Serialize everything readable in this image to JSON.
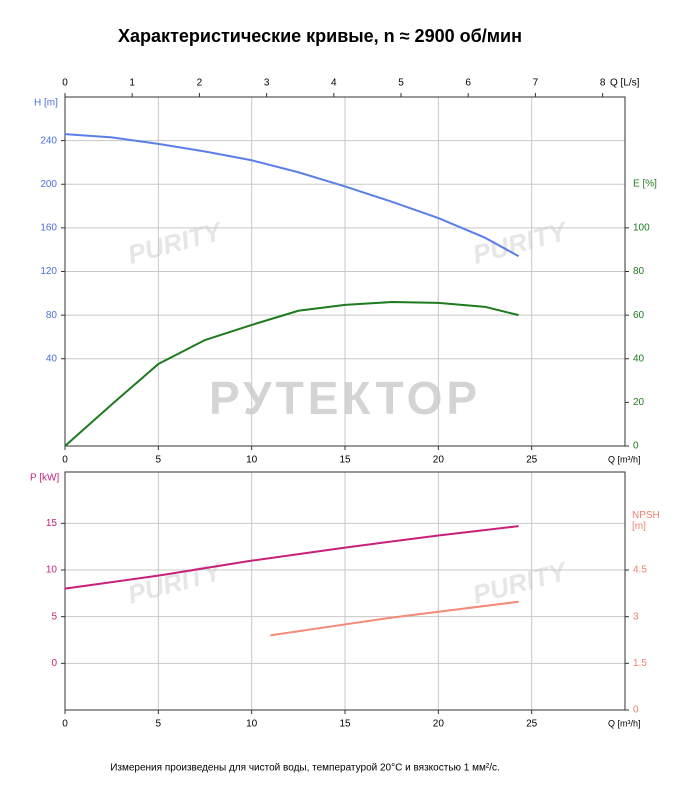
{
  "watermark": "РУТЕКТОР",
  "logo_text": "PURITY",
  "note": "Измерения произведены для чистой воды, температурой 20°C и вязкостью 1 мм²/с.",
  "chart_data": [
    {
      "type": "line",
      "title": "Характеристические кривые, n ≈ 2900 об/мин",
      "x_label": "Q [m³/h]",
      "xlim": [
        0,
        30
      ],
      "xticks": [
        0,
        5,
        10,
        15,
        20,
        25
      ],
      "x2_label": "Q [L/s]",
      "x2lim": [
        0,
        8.333
      ],
      "x2ticks": [
        0,
        1,
        2,
        3,
        4,
        5,
        6,
        7,
        8
      ],
      "y_label": "H [m]",
      "ylim": [
        -40,
        280
      ],
      "yticks": [
        40,
        80,
        120,
        160,
        200,
        240
      ],
      "y_color": "#4a6fdc",
      "y2_label": "E [%]",
      "y2lim": [
        0,
        160
      ],
      "y2ticks": [
        0,
        20,
        40,
        60,
        80,
        100
      ],
      "y2_color": "#1e7a1e",
      "grid": true,
      "series": [
        {
          "name": "H",
          "color": "#5b7fe6",
          "x": [
            0,
            2.5,
            5,
            7.5,
            10,
            12.5,
            15,
            17.5,
            20,
            22.5,
            24.3
          ],
          "values": [
            246,
            243,
            237,
            230,
            222,
            211,
            198,
            184,
            169,
            151,
            134
          ]
        },
        {
          "name": "E",
          "color": "#1e7a1e",
          "axis": "y2",
          "x": [
            0,
            2.5,
            5,
            7.5,
            10,
            12.5,
            15,
            17.5,
            20,
            22.5,
            24.3
          ],
          "values": [
            0,
            19,
            37.6,
            48.6,
            55.5,
            62,
            64.7,
            66,
            65.6,
            63.8,
            60
          ]
        }
      ]
    },
    {
      "type": "line",
      "x_label": "Q [m³/h]",
      "xlim": [
        0,
        30
      ],
      "xticks": [
        0,
        5,
        10,
        15,
        20,
        25
      ],
      "y_label": "P [kW]",
      "ylim": [
        -5,
        20.5
      ],
      "yticks": [
        0,
        5,
        10,
        15
      ],
      "y_color": "#c8207a",
      "y2_label": "NPSH [m]",
      "y2lim": [
        0,
        7.65
      ],
      "y2ticks": [
        0,
        1.5,
        3,
        4.5
      ],
      "y2_color": "#f08070",
      "grid": true,
      "series": [
        {
          "name": "P",
          "color": "#c8207a",
          "x": [
            0,
            5,
            10,
            15,
            20,
            24.3
          ],
          "values": [
            8.0,
            9.4,
            11.0,
            12.4,
            13.7,
            14.7
          ]
        },
        {
          "name": "NPSH",
          "color": "#f58a78",
          "axis": "y2",
          "x": [
            11,
            17.5,
            24.3
          ],
          "values": [
            2.4,
            2.97,
            3.48
          ]
        }
      ]
    }
  ]
}
